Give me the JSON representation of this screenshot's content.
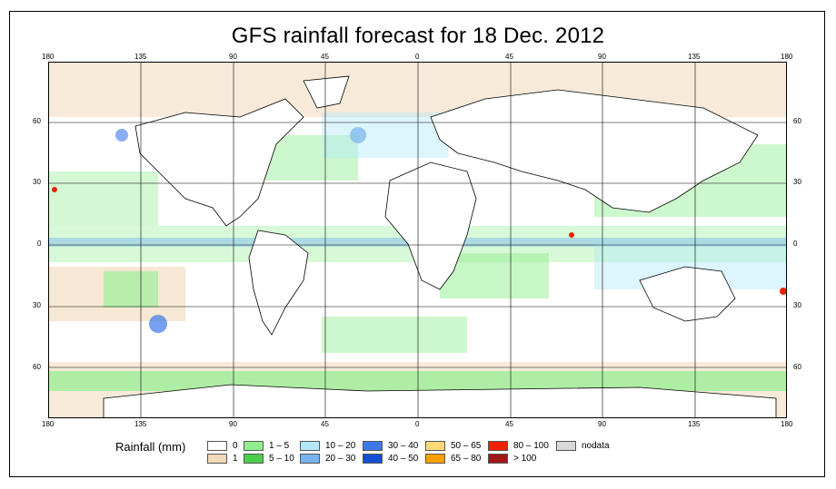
{
  "title": "GFS rainfall forecast for 18 Dec. 2012",
  "top_ticks": [
    "180",
    "135",
    "90",
    "45",
    "0",
    "45",
    "90",
    "135",
    "180"
  ],
  "bottom_ticks": [
    "180",
    "135",
    "90",
    "45",
    "0",
    "45",
    "90",
    "135",
    "180"
  ],
  "left_ticks": [
    "60",
    "30",
    "0",
    "30",
    "60"
  ],
  "right_ticks": [
    "60",
    "30",
    "0",
    "30",
    "60"
  ],
  "legend": {
    "title": "Rainfall (mm)",
    "items": [
      {
        "label": "0",
        "color": "#ffffff"
      },
      {
        "label": "1",
        "color": "#f0d8b8"
      },
      {
        "label": "1 – 5",
        "color": "#90ee90"
      },
      {
        "label": "5 – 10",
        "color": "#4ccd4c"
      },
      {
        "label": "10 – 20",
        "color": "#b4e8f8"
      },
      {
        "label": "20 – 30",
        "color": "#78b4f0"
      },
      {
        "label": "30 – 40",
        "color": "#3c78e8"
      },
      {
        "label": "40 – 50",
        "color": "#1450d0"
      },
      {
        "label": "50 – 65",
        "color": "#ffd878"
      },
      {
        "label": "65 – 80",
        "color": "#ffa000"
      },
      {
        "label": "80 – 100",
        "color": "#ee2200"
      },
      {
        "label": "> 100",
        "color": "#a01818"
      },
      {
        "label": "nodata",
        "color": "#d8d8d8"
      }
    ]
  }
}
